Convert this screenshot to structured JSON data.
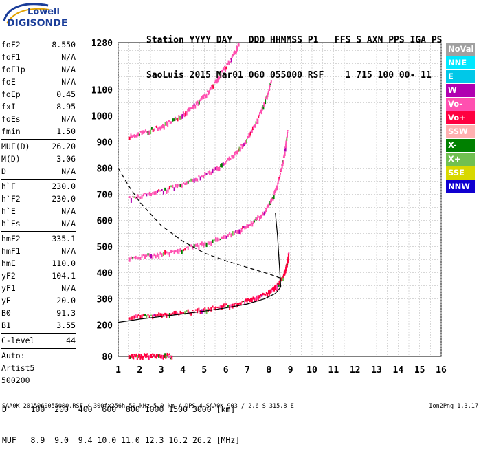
{
  "logo": {
    "line1": "Lowell",
    "line2": "DIGISONDE"
  },
  "header": {
    "line1": "Station YYYY DAY   DDD HHMMSS P1   FFS S AXN PPS IGA PS",
    "line2": "SaoLuis 2015 Mar01 060 055000 RSF    1 715 100 00- 11"
  },
  "params": [
    [
      {
        "name": "foF2",
        "value": "8.550"
      },
      {
        "name": "foF1",
        "value": "N/A"
      },
      {
        "name": "foF1p",
        "value": "N/A"
      },
      {
        "name": "foE",
        "value": "N/A"
      },
      {
        "name": "foEp",
        "value": "0.45"
      },
      {
        "name": "fxI",
        "value": "8.95"
      },
      {
        "name": "foEs",
        "value": "N/A"
      },
      {
        "name": "fmin",
        "value": "1.50"
      }
    ],
    [
      {
        "name": "MUF(D)",
        "value": "26.20"
      },
      {
        "name": "M(D)",
        "value": "3.06"
      },
      {
        "name": "D",
        "value": "N/A"
      }
    ],
    [
      {
        "name": "h`F",
        "value": "230.0"
      },
      {
        "name": "h`F2",
        "value": "230.0"
      },
      {
        "name": "h`E",
        "value": "N/A"
      },
      {
        "name": "h`Es",
        "value": "N/A"
      }
    ],
    [
      {
        "name": "hmF2",
        "value": "335.1"
      },
      {
        "name": "hmF1",
        "value": "N/A"
      },
      {
        "name": "hmE",
        "value": "110.0"
      },
      {
        "name": "yF2",
        "value": "104.1"
      },
      {
        "name": "yF1",
        "value": "N/A"
      },
      {
        "name": "yE",
        "value": "20.0"
      },
      {
        "name": "B0",
        "value": "91.3"
      },
      {
        "name": "B1",
        "value": "3.55"
      }
    ],
    [
      {
        "name": "C-level",
        "value": "44"
      }
    ]
  ],
  "auto": {
    "line1": "Auto:",
    "line2": "Artist5",
    "line3": "500200"
  },
  "legend": [
    {
      "label": "NoVal",
      "color": "#a0a0a0"
    },
    {
      "label": "NNE",
      "color": "#00e8ff"
    },
    {
      "label": "E",
      "color": "#00c8e8"
    },
    {
      "label": "W",
      "color": "#b000b0"
    },
    {
      "label": "Vo-",
      "color": "#ff50b0"
    },
    {
      "label": "Vo+",
      "color": "#ff0040"
    },
    {
      "label": "SSW",
      "color": "#ffb0b0"
    },
    {
      "label": "X-",
      "color": "#008000"
    },
    {
      "label": "X+",
      "color": "#70c050"
    },
    {
      "label": "SSE",
      "color": "#d8d800"
    },
    {
      "label": "NNW",
      "color": "#1000d0"
    }
  ],
  "bottom": {
    "line1": "D     100  200  400  600  800 1000 1500 3000 [km]",
    "line2": "MUF   8.9  9.0  9.4 10.0 11.0 12.3 16.2 26.2 [MHz]"
  },
  "footer": "SAA0K_2015060055000.RSF / 300fx256h 50 kHz 5.0 km / DPS-4 SAA0K 903 / 2.6 S 315.8 E",
  "version": "Ion2Png 1.3.17",
  "chart_data": {
    "type": "scatter",
    "xlim": [
      1,
      16
    ],
    "ylim": [
      80,
      1280
    ],
    "x_ticks": [
      1,
      2,
      3,
      4,
      5,
      6,
      7,
      8,
      9,
      10,
      11,
      12,
      13,
      14,
      15,
      16
    ],
    "y_ticks": [
      80,
      200,
      300,
      400,
      500,
      600,
      700,
      800,
      900,
      1000,
      1100,
      1280
    ],
    "grid": true,
    "traces": [
      {
        "name": "F-trace-1",
        "color": "#ff0040",
        "x": [
          1.5,
          2.5,
          3.5,
          4.5,
          5.5,
          6.5,
          7.3,
          7.9,
          8.3,
          8.6,
          8.8,
          8.9
        ],
        "y": [
          235,
          240,
          248,
          257,
          270,
          288,
          305,
          325,
          350,
          385,
          430,
          480
        ]
      },
      {
        "name": "F-trace-2",
        "color": "#ff50b0",
        "x": [
          1.5,
          2.5,
          3.5,
          4.5,
          5.5,
          6.5,
          7.2,
          7.8,
          8.2,
          8.5,
          8.7,
          8.85
        ],
        "y": [
          460,
          470,
          485,
          505,
          530,
          560,
          595,
          640,
          700,
          780,
          860,
          950
        ]
      },
      {
        "name": "F-trace-3",
        "color": "#ff50b0",
        "x": [
          1.5,
          2.5,
          3.5,
          4.5,
          5.5,
          6.3,
          6.9,
          7.4,
          7.8,
          8.1
        ],
        "y": [
          690,
          705,
          730,
          760,
          800,
          850,
          910,
          980,
          1060,
          1140
        ]
      },
      {
        "name": "F-trace-4",
        "color": "#ff50b0",
        "x": [
          1.5,
          2.3,
          3.1,
          3.9,
          4.6,
          5.2,
          5.7,
          6.2,
          6.6
        ],
        "y": [
          925,
          945,
          970,
          1005,
          1050,
          1100,
          1160,
          1220,
          1280
        ]
      },
      {
        "name": "E-trace",
        "color": "#ff0040",
        "x": [
          1.5,
          2,
          2.5,
          3,
          3.5
        ],
        "y": [
          85,
          86,
          88,
          87,
          88
        ]
      }
    ],
    "profile": {
      "x": [
        1,
        2,
        3,
        4,
        5,
        6,
        7,
        7.8,
        8.3,
        8.55,
        8.5,
        8.4,
        8.3
      ],
      "y": [
        210,
        222,
        232,
        242,
        253,
        265,
        280,
        300,
        320,
        345,
        410,
        540,
        630
      ]
    },
    "muf_curve": {
      "x": [
        1,
        1.5,
        2,
        3,
        4,
        5,
        6,
        7,
        8,
        8.5
      ],
      "y": [
        800,
        730,
        670,
        580,
        520,
        475,
        445,
        420,
        395,
        380
      ]
    }
  }
}
